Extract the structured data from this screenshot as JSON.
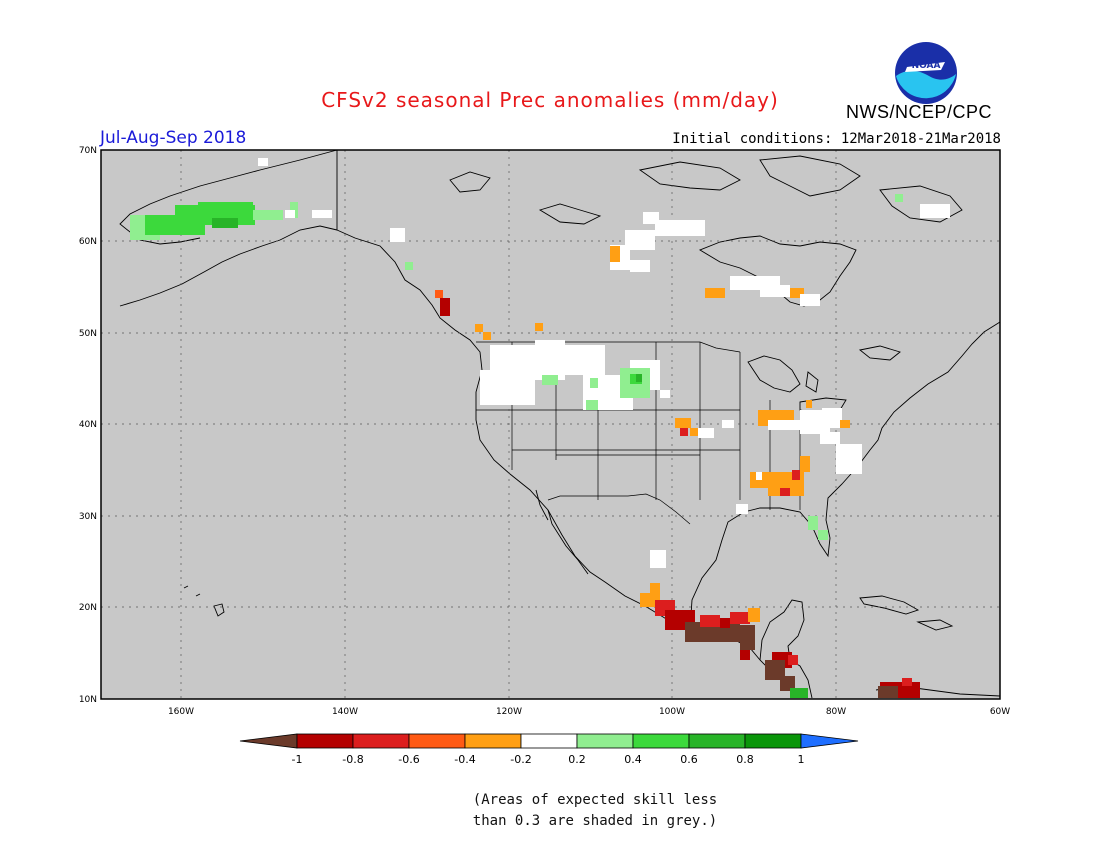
{
  "header": {
    "title": "CFSv2 seasonal Prec anomalies (mm/day)",
    "agency": "NWS/NCEP/CPC",
    "logo_text": "NOAA",
    "season": "Jul-Aug-Sep 2018",
    "initial_conditions": "Initial conditions: 12Mar2018-21Mar2018"
  },
  "map": {
    "lat_labels": [
      "70N",
      "60N",
      "50N",
      "40N",
      "30N",
      "20N",
      "10N"
    ],
    "lon_labels": [
      "160W",
      "140W",
      "120W",
      "100W",
      "80W",
      "60W"
    ],
    "background_color": "#c8c8c8"
  },
  "legend": {
    "labels": [
      "-1",
      "-0.8",
      "-0.6",
      "-0.4",
      "-0.2",
      "0.2",
      "0.4",
      "0.6",
      "0.8",
      "1"
    ],
    "colors": [
      "#6b3a2a",
      "#b40000",
      "#dc1e1e",
      "#ff5a14",
      "#ff9f14",
      "#ffffff",
      "#90ee90",
      "#3cd93c",
      "#28b428",
      "#0a960a",
      "#1e6eff"
    ]
  },
  "footnote": {
    "line1": "(Areas of expected skill less",
    "line2": "than 0.3 are shaded in grey.)"
  }
}
